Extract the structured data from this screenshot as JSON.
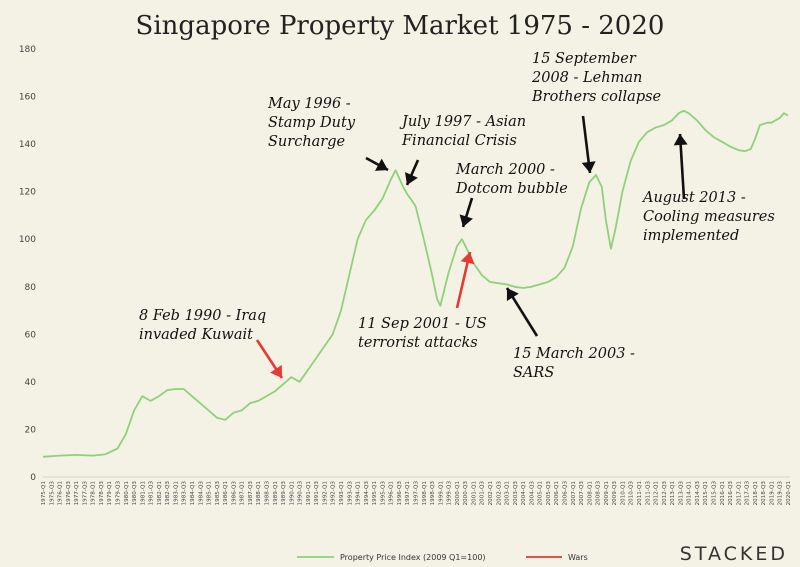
{
  "chart_data": {
    "type": "line",
    "title": "Singapore Property Market 1975 - 2020",
    "xlabel": "",
    "ylabel": "",
    "ylim": [
      0,
      180
    ],
    "yticks": [
      0,
      20,
      40,
      60,
      80,
      100,
      120,
      140,
      160,
      180
    ],
    "xtick_labels": [
      "1975-Q1",
      "1975-Q3",
      "1976-Q1",
      "1976-Q3",
      "1977-Q1",
      "1977-Q3",
      "1978-Q1",
      "1978-Q3",
      "1979-Q1",
      "1979-Q3",
      "1980-Q1",
      "1980-Q3",
      "1981-Q1",
      "1981-Q3",
      "1982-Q1",
      "1982-Q3",
      "1983-Q1",
      "1983-Q3",
      "1984-Q1",
      "1984-Q3",
      "1985-Q1",
      "1985-Q3",
      "1986-Q1",
      "1986-Q3",
      "1987-Q1",
      "1987-Q3",
      "1988-Q1",
      "1988-Q3",
      "1989-Q1",
      "1989-Q3",
      "1990-Q1",
      "1990-Q3",
      "1991-Q1",
      "1991-Q3",
      "1992-Q1",
      "1992-Q3",
      "1993-Q1",
      "1993-Q3",
      "1994-Q1",
      "1994-Q3",
      "1995-Q1",
      "1995-Q3",
      "1996-Q1",
      "1996-Q3",
      "1997-Q1",
      "1997-Q3",
      "1998-Q1",
      "1998-Q3",
      "1999-Q1",
      "1999-Q3",
      "2000-Q1",
      "2000-Q3",
      "2001-Q1",
      "2001-Q3",
      "2002-Q1",
      "2002-Q3",
      "2003-Q1",
      "2003-Q3",
      "2004-Q1",
      "2004-Q3",
      "2005-Q1",
      "2005-Q3",
      "2006-Q1",
      "2006-Q3",
      "2007-Q1",
      "2007-Q3",
      "2008-Q1",
      "2008-Q3",
      "2009-Q1",
      "2009-Q3",
      "2010-Q1",
      "2010-Q3",
      "2011-Q1",
      "2011-Q3",
      "2012-Q1",
      "2012-Q3",
      "2013-Q1",
      "2013-Q3",
      "2014-Q1",
      "2014-Q3",
      "2015-Q1",
      "2015-Q3",
      "2016-Q1",
      "2016-Q3",
      "2017-Q1",
      "2017-Q3",
      "2018-Q1",
      "2018-Q3",
      "2019-Q1",
      "2019-Q3",
      "2020-Q1"
    ],
    "series": [
      {
        "name": "Property Price Index (2009 Q1=100)",
        "color": "#8fd17a",
        "points": [
          [
            1975.0,
            8.5
          ],
          [
            1976.0,
            9
          ],
          [
            1977.0,
            9.3
          ],
          [
            1978.0,
            9
          ],
          [
            1978.75,
            9.5
          ],
          [
            1979.5,
            12
          ],
          [
            1980.0,
            18
          ],
          [
            1980.5,
            28
          ],
          [
            1981.0,
            34
          ],
          [
            1981.5,
            32
          ],
          [
            1982.0,
            34
          ],
          [
            1982.5,
            36.5
          ],
          [
            1983.0,
            37
          ],
          [
            1983.5,
            37
          ],
          [
            1984.0,
            34
          ],
          [
            1984.5,
            31
          ],
          [
            1985.0,
            28
          ],
          [
            1985.5,
            25
          ],
          [
            1986.0,
            24
          ],
          [
            1986.5,
            27
          ],
          [
            1987.0,
            28
          ],
          [
            1987.5,
            31
          ],
          [
            1988.0,
            32
          ],
          [
            1988.5,
            34
          ],
          [
            1989.0,
            36
          ],
          [
            1989.5,
            39
          ],
          [
            1990.0,
            42
          ],
          [
            1990.5,
            40
          ],
          [
            1991.0,
            45
          ],
          [
            1991.5,
            50
          ],
          [
            1992.0,
            55
          ],
          [
            1992.5,
            60
          ],
          [
            1993.0,
            70
          ],
          [
            1993.5,
            85
          ],
          [
            1994.0,
            100
          ],
          [
            1994.5,
            108
          ],
          [
            1995.0,
            112
          ],
          [
            1995.5,
            117
          ],
          [
            1996.0,
            125
          ],
          [
            1996.3,
            129
          ],
          [
            1996.5,
            126
          ],
          [
            1996.75,
            122
          ],
          [
            1997.0,
            119
          ],
          [
            1997.5,
            114
          ],
          [
            1998.0,
            100
          ],
          [
            1998.5,
            85
          ],
          [
            1998.8,
            75
          ],
          [
            1999.0,
            72
          ],
          [
            1999.5,
            86
          ],
          [
            2000.0,
            97
          ],
          [
            2000.3,
            100
          ],
          [
            2000.6,
            96
          ],
          [
            2001.0,
            90
          ],
          [
            2001.5,
            85
          ],
          [
            2002.0,
            82
          ],
          [
            2002.5,
            81.5
          ],
          [
            2003.0,
            81
          ],
          [
            2003.5,
            80
          ],
          [
            2004.0,
            79.5
          ],
          [
            2004.5,
            80
          ],
          [
            2005.0,
            81
          ],
          [
            2005.5,
            82
          ],
          [
            2006.0,
            84
          ],
          [
            2006.5,
            88
          ],
          [
            2007.0,
            97
          ],
          [
            2007.5,
            113
          ],
          [
            2008.0,
            124
          ],
          [
            2008.4,
            127
          ],
          [
            2008.75,
            122
          ],
          [
            2009.0,
            108
          ],
          [
            2009.3,
            96
          ],
          [
            2009.6,
            105
          ],
          [
            2010.0,
            120
          ],
          [
            2010.5,
            133
          ],
          [
            2011.0,
            141
          ],
          [
            2011.5,
            145
          ],
          [
            2012.0,
            147
          ],
          [
            2012.5,
            148
          ],
          [
            2013.0,
            150
          ],
          [
            2013.4,
            153
          ],
          [
            2013.7,
            154
          ],
          [
            2014.0,
            153
          ],
          [
            2014.5,
            150
          ],
          [
            2015.0,
            146
          ],
          [
            2015.5,
            143
          ],
          [
            2016.0,
            141
          ],
          [
            2016.5,
            139
          ],
          [
            2017.0,
            137.5
          ],
          [
            2017.4,
            137
          ],
          [
            2017.75,
            138
          ],
          [
            2018.0,
            142
          ],
          [
            2018.3,
            148
          ],
          [
            2018.75,
            149
          ],
          [
            2019.0,
            149
          ],
          [
            2019.5,
            151
          ],
          [
            2019.75,
            153
          ],
          [
            2020.0,
            152
          ]
        ]
      },
      {
        "name": "Wars",
        "color": "#e53935",
        "points": []
      }
    ],
    "annotations": [
      {
        "id": "lehman",
        "lines": [
          "15 September",
          "2008 - Lehman",
          "Brothers collapse"
        ],
        "arrow_color": "#111"
      },
      {
        "id": "stamp",
        "lines": [
          "May 1996 -",
          "Stamp Duty",
          "Surcharge"
        ],
        "arrow_color": "#111"
      },
      {
        "id": "afc",
        "lines": [
          "July 1997 - Asian",
          "Financial Crisis"
        ],
        "arrow_color": "#111"
      },
      {
        "id": "dotcom",
        "lines": [
          "March 2000 -",
          "Dotcom bubble"
        ],
        "arrow_color": "#111"
      },
      {
        "id": "cooling",
        "lines": [
          "August 2013 -",
          "Cooling measures",
          "implemented"
        ],
        "arrow_color": "#111"
      },
      {
        "id": "kuwait",
        "lines": [
          "8 Feb 1990 - Iraq",
          "invaded Kuwait"
        ],
        "arrow_color": "#e53935"
      },
      {
        "id": "sep11",
        "lines": [
          "11 Sep 2001 - US",
          "terrorist attacks"
        ],
        "arrow_color": "#e53935"
      },
      {
        "id": "sars",
        "lines": [
          "15 March 2003 -",
          "SARS"
        ],
        "arrow_color": "#111"
      }
    ],
    "grid": false,
    "legend_position": "bottom"
  },
  "brand": "STACKED"
}
